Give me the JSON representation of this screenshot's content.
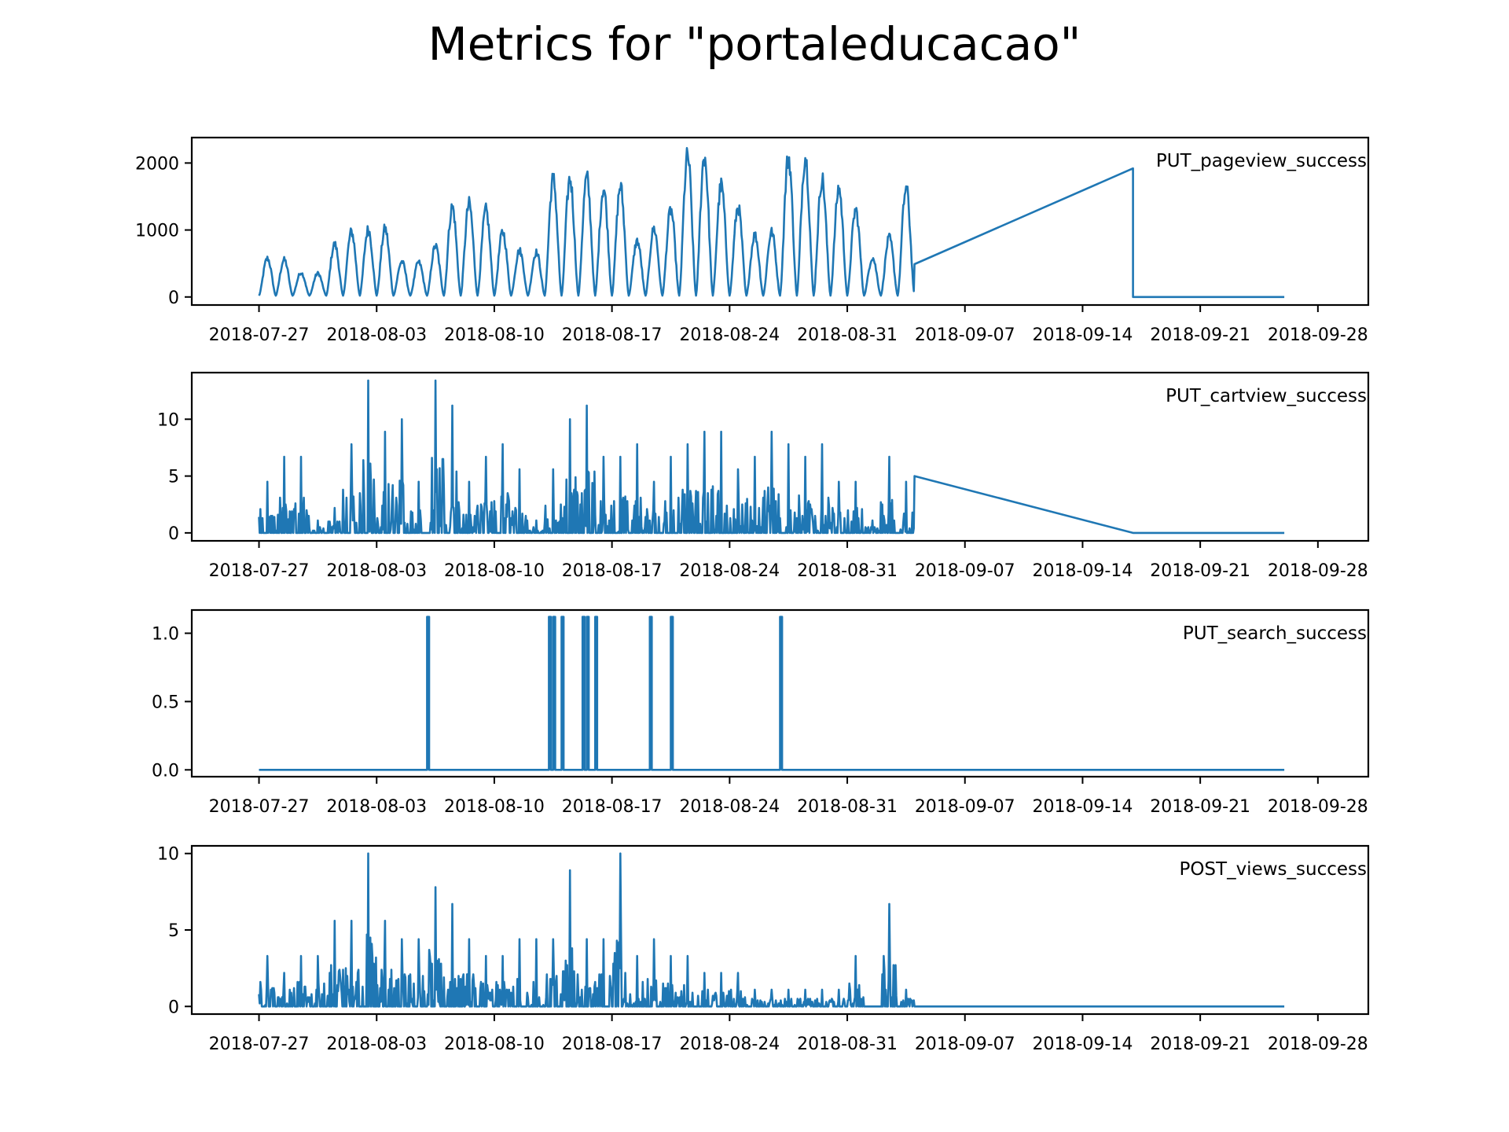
{
  "title": "Metrics for \"portaleducacao\"",
  "colors": {
    "line": "#1f77b4",
    "axes": "#000000",
    "background": "#ffffff"
  },
  "chart_data": [
    {
      "type": "line",
      "label": "PUT_pageview_success",
      "x_range": [
        "2018-07-23",
        "2018-10-01"
      ],
      "ylim": [
        -120,
        2380
      ],
      "yticks": [
        0,
        1000,
        2000
      ],
      "ytick_labels": [
        "0",
        "1000",
        "2000"
      ],
      "xticks": [
        "2018-07-27",
        "2018-08-03",
        "2018-08-10",
        "2018-08-17",
        "2018-08-24",
        "2018-08-31",
        "2018-09-07",
        "2018-09-14",
        "2018-09-21",
        "2018-09-28"
      ],
      "grid": false,
      "series": [
        {
          "x": [
            "2018-07-27",
            "2018-07-28",
            "2018-07-29",
            "2018-07-30",
            "2018-07-31",
            "2018-08-01",
            "2018-08-02",
            "2018-08-03",
            "2018-08-04",
            "2018-08-05",
            "2018-08-06",
            "2018-08-07",
            "2018-08-08",
            "2018-08-09",
            "2018-08-10",
            "2018-08-11",
            "2018-08-12",
            "2018-08-13",
            "2018-08-14",
            "2018-08-15",
            "2018-08-16",
            "2018-08-17",
            "2018-08-18",
            "2018-08-19",
            "2018-08-20",
            "2018-08-21",
            "2018-08-22",
            "2018-08-23",
            "2018-08-24",
            "2018-08-25",
            "2018-08-26",
            "2018-08-27",
            "2018-08-28",
            "2018-08-29",
            "2018-08-30",
            "2018-08-31",
            "2018-09-01",
            "2018-09-02",
            "2018-09-03",
            "2018-09-04"
          ],
          "y": [
            620,
            600,
            390,
            380,
            850,
            1050,
            1090,
            1100,
            570,
            560,
            820,
            1450,
            1500,
            1400,
            1050,
            750,
            720,
            1900,
            1900,
            1920,
            1750,
            1780,
            900,
            1100,
            1400,
            2270,
            2270,
            1800,
            1450,
            1000,
            1050,
            2250,
            2250,
            1900,
            1750,
            1400,
            630,
            950,
            1750,
            490
          ]
        },
        {
          "x": [
            "2018-09-04",
            "2018-09-17",
            "2018-09-17",
            "2018-09-26"
          ],
          "y": [
            490,
            1920,
            0,
            0
          ]
        }
      ]
    },
    {
      "type": "line",
      "label": "PUT_cartview_success",
      "x_range": [
        "2018-07-23",
        "2018-10-01"
      ],
      "ylim": [
        -0.7,
        14.1
      ],
      "yticks": [
        0,
        5,
        10
      ],
      "ytick_labels": [
        "0",
        "5",
        "10"
      ],
      "xticks": [
        "2018-07-27",
        "2018-08-03",
        "2018-08-10",
        "2018-08-17",
        "2018-08-24",
        "2018-08-31",
        "2018-09-07",
        "2018-09-14",
        "2018-09-21",
        "2018-09-28"
      ],
      "grid": false,
      "series": [
        {
          "x": [
            "2018-07-27",
            "2018-07-28",
            "2018-07-29",
            "2018-07-30",
            "2018-07-31",
            "2018-08-01",
            "2018-08-02",
            "2018-08-03",
            "2018-08-04",
            "2018-08-05",
            "2018-08-06",
            "2018-08-07",
            "2018-08-08",
            "2018-08-09",
            "2018-08-10",
            "2018-08-11",
            "2018-08-12",
            "2018-08-13",
            "2018-08-14",
            "2018-08-15",
            "2018-08-16",
            "2018-08-17",
            "2018-08-18",
            "2018-08-19",
            "2018-08-20",
            "2018-08-21",
            "2018-08-22",
            "2018-08-23",
            "2018-08-24",
            "2018-08-25",
            "2018-08-26",
            "2018-08-27",
            "2018-08-28",
            "2018-08-29",
            "2018-08-30",
            "2018-08-31",
            "2018-09-01",
            "2018-09-02",
            "2018-09-03",
            "2018-09-04"
          ],
          "y": [
            4.5,
            6.7,
            6.7,
            1.1,
            2.2,
            7.8,
            13.4,
            8.9,
            10.0,
            4.5,
            13.4,
            11.2,
            4.5,
            6.7,
            7.8,
            5.6,
            1.1,
            5.6,
            10.0,
            11.2,
            6.7,
            6.7,
            7.8,
            4.5,
            6.7,
            7.8,
            8.9,
            8.9,
            5.6,
            6.7,
            8.9,
            7.8,
            6.7,
            7.8,
            4.5,
            4.5,
            1.1,
            6.7,
            4.5,
            5.0
          ]
        },
        {
          "x": [
            "2018-09-04",
            "2018-09-17",
            "2018-09-26"
          ],
          "y": [
            5.0,
            0,
            0
          ]
        }
      ]
    },
    {
      "type": "line",
      "label": "PUT_search_success",
      "x_range": [
        "2018-07-23",
        "2018-10-01"
      ],
      "ylim": [
        -0.05,
        1.17
      ],
      "yticks": [
        0.0,
        0.5,
        1.0
      ],
      "ytick_labels": [
        "0.0",
        "0.5",
        "1.0"
      ],
      "xticks": [
        "2018-07-27",
        "2018-08-03",
        "2018-08-10",
        "2018-08-17",
        "2018-08-24",
        "2018-08-31",
        "2018-09-07",
        "2018-09-14",
        "2018-09-21",
        "2018-09-28"
      ],
      "grid": false,
      "series": [
        {
          "baseline": 0,
          "range": [
            "2018-07-27",
            "2018-09-26"
          ],
          "spike_value": 1.12,
          "spikes": [
            "2018-08-06",
            "2018-08-13",
            "2018-08-13",
            "2018-08-14",
            "2018-08-15",
            "2018-08-15",
            "2018-08-16",
            "2018-08-19",
            "2018-08-20",
            "2018-08-27"
          ]
        }
      ]
    },
    {
      "type": "line",
      "label": "POST_views_success",
      "x_range": [
        "2018-07-23",
        "2018-10-01"
      ],
      "ylim": [
        -0.5,
        10.5
      ],
      "yticks": [
        0,
        5,
        10
      ],
      "ytick_labels": [
        "0",
        "5",
        "10"
      ],
      "xticks": [
        "2018-07-27",
        "2018-08-03",
        "2018-08-10",
        "2018-08-17",
        "2018-08-24",
        "2018-08-31",
        "2018-09-07",
        "2018-09-14",
        "2018-09-21",
        "2018-09-28"
      ],
      "grid": false,
      "series": [
        {
          "x": [
            "2018-07-27",
            "2018-07-28",
            "2018-07-29",
            "2018-07-30",
            "2018-07-31",
            "2018-08-01",
            "2018-08-02",
            "2018-08-03",
            "2018-08-04",
            "2018-08-05",
            "2018-08-06",
            "2018-08-07",
            "2018-08-08",
            "2018-08-09",
            "2018-08-10",
            "2018-08-11",
            "2018-08-12",
            "2018-08-13",
            "2018-08-14",
            "2018-08-15",
            "2018-08-16",
            "2018-08-17",
            "2018-08-18",
            "2018-08-19",
            "2018-08-20",
            "2018-08-21",
            "2018-08-22",
            "2018-08-23",
            "2018-08-24",
            "2018-08-25",
            "2018-08-26",
            "2018-08-27",
            "2018-08-28",
            "2018-08-29",
            "2018-08-30",
            "2018-08-31",
            "2018-09-01",
            "2018-09-02",
            "2018-09-03",
            "2018-09-04"
          ],
          "y": [
            3.3,
            2.2,
            3.3,
            3.3,
            5.6,
            5.6,
            10.0,
            5.6,
            4.4,
            4.4,
            7.8,
            6.7,
            4.4,
            3.3,
            3.3,
            4.4,
            4.4,
            4.4,
            8.9,
            4.4,
            4.4,
            10.0,
            3.3,
            4.4,
            3.3,
            3.3,
            2.2,
            2.2,
            2.2,
            1.1,
            1.1,
            1.1,
            1.1,
            1.1,
            1.1,
            3.3,
            0,
            6.7,
            1.1,
            0
          ]
        },
        {
          "x": [
            "2018-09-04",
            "2018-09-26"
          ],
          "y": [
            0,
            0
          ]
        }
      ]
    }
  ]
}
